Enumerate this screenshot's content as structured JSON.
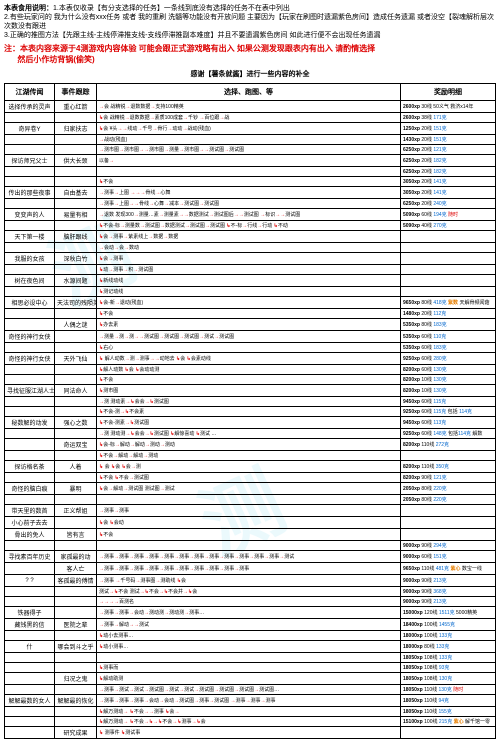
{
  "notes": {
    "title": "本表食用说明：",
    "n1": "1.本表仅收录【有分支选择的任务】一条线到底没有选择的任务不在表中列出",
    "n2": "2.有些玩家问的 我为什么没有xxx任务 或者 我的重刷 洗髓等功能没有开放问题 主要因为【玩家在刷图时遗漏紫色房间】造成任务遗漏 或者没空【裂魂解析层次 次数没有跟进",
    "n3": "3.正确的推图方法【先跟主线-主线停滞推支线-支线停滞推副本难度】并且不要遗漏紫色房间 如此进行便不会出现任务遗漏"
  },
  "warn": {
    "l1": "注：本表内容来源于4测游戏内容体验 可能会跟正式游戏略有出入 如果公测发现跟表内有出入 请酌情选择",
    "l2": "然后小作坊背锅(偷笑)"
  },
  "thanks": "感谢【薯条就酱】进行一些内容的补全",
  "headers": {
    "h1": "江湖传闻",
    "h2": "事件跟踪",
    "h3": "选择、跑图、等",
    "h4": "奖励明细"
  },
  "rows": [
    {
      "legend": "选择传承的灵声",
      "event": "重心红箭",
      "choice": "→会 战精锐→退数数据→支持100精英",
      "reward": "2600xp 30线 50义气 救济x14年"
    },
    {
      "legend": "",
      "event": "",
      "choice": "↳会 战精锐→退数数据→素质100成套→千钞 →百位跟→战",
      "reward": "2600xp 38线 171克"
    },
    {
      "legend": "奇异卷Y",
      "event": "归家扶志",
      "choice": "↳会 ¥头→→线动→千号→骨行→动动→战动(残血)",
      "reward": "1250xp 20线 151克"
    },
    {
      "legend": "",
      "event": "",
      "choice": "→战动(残血)",
      "reward": "1430xp 20线 151克"
    },
    {
      "legend": "",
      "event": "",
      "choice": "→测市图→测市图→→测市图→测量→测市图→→测试图→测试图",
      "reward": "6250xp 20线 121克"
    },
    {
      "legend": "探访师兄父士",
      "event": "供大长颈",
      "choice": "以备→",
      "reward": "6250xp 20线 182克"
    },
    {
      "legend": "",
      "event": "",
      "choice": "",
      "reward": "6250xp 20线 182克"
    },
    {
      "legend": "",
      "event": "",
      "choice": "↳不会",
      "reward": "3050xp 20线 141克"
    },
    {
      "legend": "传出的那些夜事",
      "event": "自由基去",
      "choice": "→测事→上图 →→→骨线→心舞",
      "reward": "3050xp 20线 141克"
    },
    {
      "legend": "",
      "event": "",
      "choice": "→测事→上图→→骨线→心舞→减本→测试图→测试图",
      "reward": "6250xp 20线 240克"
    },
    {
      "legend": "变变声的人",
      "event": "易量有相",
      "choice": "→退数 发现300→测量…素→测量素→→数据测试→测试图后→→测试图 →标识→→测试图",
      "reward": "5090xp 60线 194克 随时"
    },
    {
      "legend": "",
      "event": "",
      "choice": "↳不会-标→测量数→测试图→数据测试→测试图→测试图 ↳不-标→行线→行动 ↳不动",
      "reward": "5090xp 40线 270克"
    },
    {
      "legend": "天下第一楼",
      "event": "脑肝跟线",
      "choice": "↳会→测事→紫素线上→数据→数据",
      "reward": ""
    },
    {
      "legend": "",
      "event": "",
      "choice": "→会动→会→数动",
      "reward": ""
    },
    {
      "legend": "我服的女孩",
      "event": "深秋白竹",
      "choice": "↳会→测事",
      "reward": ""
    },
    {
      "legend": "",
      "event": "",
      "choice": "↳动→测事→积→测试图",
      "reward": ""
    },
    {
      "legend": "树在夜色间",
      "event": "水源间题",
      "choice": "↳新线动线",
      "reward": ""
    },
    {
      "legend": "",
      "event": "",
      "choice": "↳测记动线",
      "reward": ""
    },
    {
      "legend": "相思必设中心",
      "event": "天法司的残陨英学",
      "choice": "↳会-新→退动(残血)",
      "reward": "9650xp 80线 418克 紫数 天解骨频闻菇"
    },
    {
      "legend": "",
      "event": "",
      "choice": "↳不会",
      "reward": "1480xp 20线 112克"
    },
    {
      "legend": "",
      "event": "人偶之谜",
      "choice": "↳办去素",
      "reward": "5350xp 80线 183克"
    },
    {
      "legend": "奇怪的神行女侠",
      "event": "",
      "choice": "→测量→测→测→→测试图→测试图→测试图→测试→测试图",
      "reward": "5350xp 60线 110克"
    },
    {
      "legend": "",
      "event": "",
      "choice": "↳右心",
      "reward": "5350xp 60线 183克"
    },
    {
      "legend": "奇怪的神行女侠",
      "event": "天外飞仙",
      "choice": "↳ 解人动数→测→测事→→动地去 ↳会 ↳会素动线",
      "reward": "9250xp 60线 280克"
    },
    {
      "legend": "",
      "event": "",
      "choice": "↳解人动数 ↳会 ↳会动动测",
      "reward": "8200xp 60线 130克"
    },
    {
      "legend": "",
      "event": "",
      "choice": "↳不会",
      "reward": "8200xp 10线 130克"
    },
    {
      "legend": "寻找征服江湖人士",
      "event": "同法命人",
      "choice": "↳测市图",
      "reward": "8200xp 10线 130克"
    },
    {
      "legend": "",
      "event": "",
      "choice": "→测 测动素→↳会会→↳测试图",
      "reward": "9450xp 60线 115克"
    },
    {
      "legend": "",
      "event": "",
      "choice": "↳不会-测→↳不会素",
      "reward": "9250xp 60线 115克 包括 114克"
    },
    {
      "legend": "秘数解的动发",
      "event": "强心之数",
      "choice": "↳不会-测素→↳测试图",
      "reward": "9450xp 60线 113克"
    },
    {
      "legend": "",
      "event": "",
      "choice": "→测 测动测→↳会会→↳测试图 ↳解惊喜动 ↳测试 …",
      "reward": "9250xp 60线 148克 包括114克 解数"
    },
    {
      "legend": "",
      "event": "奇运双宝",
      "choice": "↳会-标→解动→解动→测动→测动",
      "reward": "8200xp 110线 272克"
    },
    {
      "legend": "",
      "event": "",
      "choice": "↳不会→解动→解动→测动",
      "reward": ""
    },
    {
      "legend": "探访格名茶",
      "event": "人着",
      "choice": "↳ 会 ↳会 ↳会→测",
      "reward": "8200xp 110线 350克"
    },
    {
      "legend": "",
      "event": "",
      "choice": "↳不会 ↳不会→测试图",
      "reward": "8200xp 90线 121克"
    },
    {
      "legend": "奇怪的脑白痕",
      "event": "暴明",
      "choice": "↳会→解动→测试图 测试图→测试",
      "reward": "2050xp 80线 220克"
    },
    {
      "legend": "",
      "event": "",
      "choice": "",
      "reward": "2050xp 80线 220克"
    },
    {
      "legend": "带天里的数首",
      "event": "正义帮姐",
      "choice": "→测事→测事",
      "reward": ""
    },
    {
      "legend": "小心前子去去",
      "event": "",
      "choice": "↳会 ↳会动",
      "reward": ""
    },
    {
      "legend": "骨出的免人",
      "event": "皆有言",
      "choice": "↳不会",
      "reward": ""
    },
    {
      "legend": "",
      "event": "",
      "choice": "",
      "reward": "9000xp 90线 294克"
    },
    {
      "legend": "寻找素百年历史",
      "event": "家孤最的动",
      "choice": "→测事→测事→测事→测事→测事→测事→测事→测事→测事→测事→测事→测事→测试",
      "reward": "9000xp 60线 151克"
    },
    {
      "legend": "",
      "event": "客人亡",
      "choice": "→测事→测事→测事→测事→测事→测事→测事→测事→测事→测事",
      "reward": "9650xp 110线 481克 紫心 数宝一线"
    },
    {
      "legend": "? ?",
      "event": "客孤最的傅情",
      "choice": "→测事 →千号码→测事图→测助线 ↳会",
      "reward": "9000xp 90线 213克"
    },
    {
      "legend": "",
      "event": "",
      "choice": "测试→↳不会 测试→↳不会→↳不会并→↳会",
      "reward": "9000xp 90线 368克"
    },
    {
      "legend": "",
      "event": "",
      "choice": "→→→→百测名",
      "reward": "9000xp 90线 213克"
    },
    {
      "legend": "铁器得子",
      "event": "",
      "choice": "→测事→测事→会动→测动测→测动测→测事…",
      "reward": "15000xp 120线 1511克 5000精英"
    },
    {
      "legend": "藏钱黑的信",
      "event": "医院之辈",
      "choice": "→测事→解动→→测试",
      "reward": "18400xp 100线 1455克"
    },
    {
      "legend": "",
      "event": "",
      "choice": "↳动小去测事…",
      "reward": "18000xp 100线 133克"
    },
    {
      "legend": "什",
      "event": "哪会到斗之乎",
      "choice": "↳动小测事…",
      "reward": "18000xp 80线 133克"
    },
    {
      "legend": "",
      "event": "",
      "choice": "",
      "reward": "18050xp 108线 133克"
    },
    {
      "legend": "",
      "event": "",
      "choice": "↳测事而",
      "reward": "18050xp 108线 93克"
    },
    {
      "legend": "",
      "event": "归况之鬼",
      "choice": "↳解动助测",
      "reward": "18050xp 108线 130克"
    },
    {
      "legend": "",
      "event": "",
      "choice": "→测事→测试→测试→测试图→测试→测试→测试图→测试图→测试图→测试图…",
      "reward": "18050xp 110线 130克 随时"
    },
    {
      "legend": "解解最数的女人",
      "event": "解解最的恢化",
      "choice": "→测事→测事→测事→会动→会动→测试图→测事→测试图 →测事→测事→测事",
      "reward": "18050xp 110线 94克"
    },
    {
      "legend": "",
      "event": "",
      "choice": "↳解万测动→ ↳不会→→测事 ↳会→",
      "reward": "18050xp 110线 155克"
    },
    {
      "legend": "",
      "event": "",
      "choice": "↳解万测动→ ↳不会→↳→↳不会→↳测事→↳会",
      "reward": "15100xp 100线 215克 紫心 解千馆一零"
    },
    {
      "legend": "",
      "event": "研究成果",
      "choice": "↳ 测事件 ↳测试事",
      "reward": ""
    }
  ]
}
